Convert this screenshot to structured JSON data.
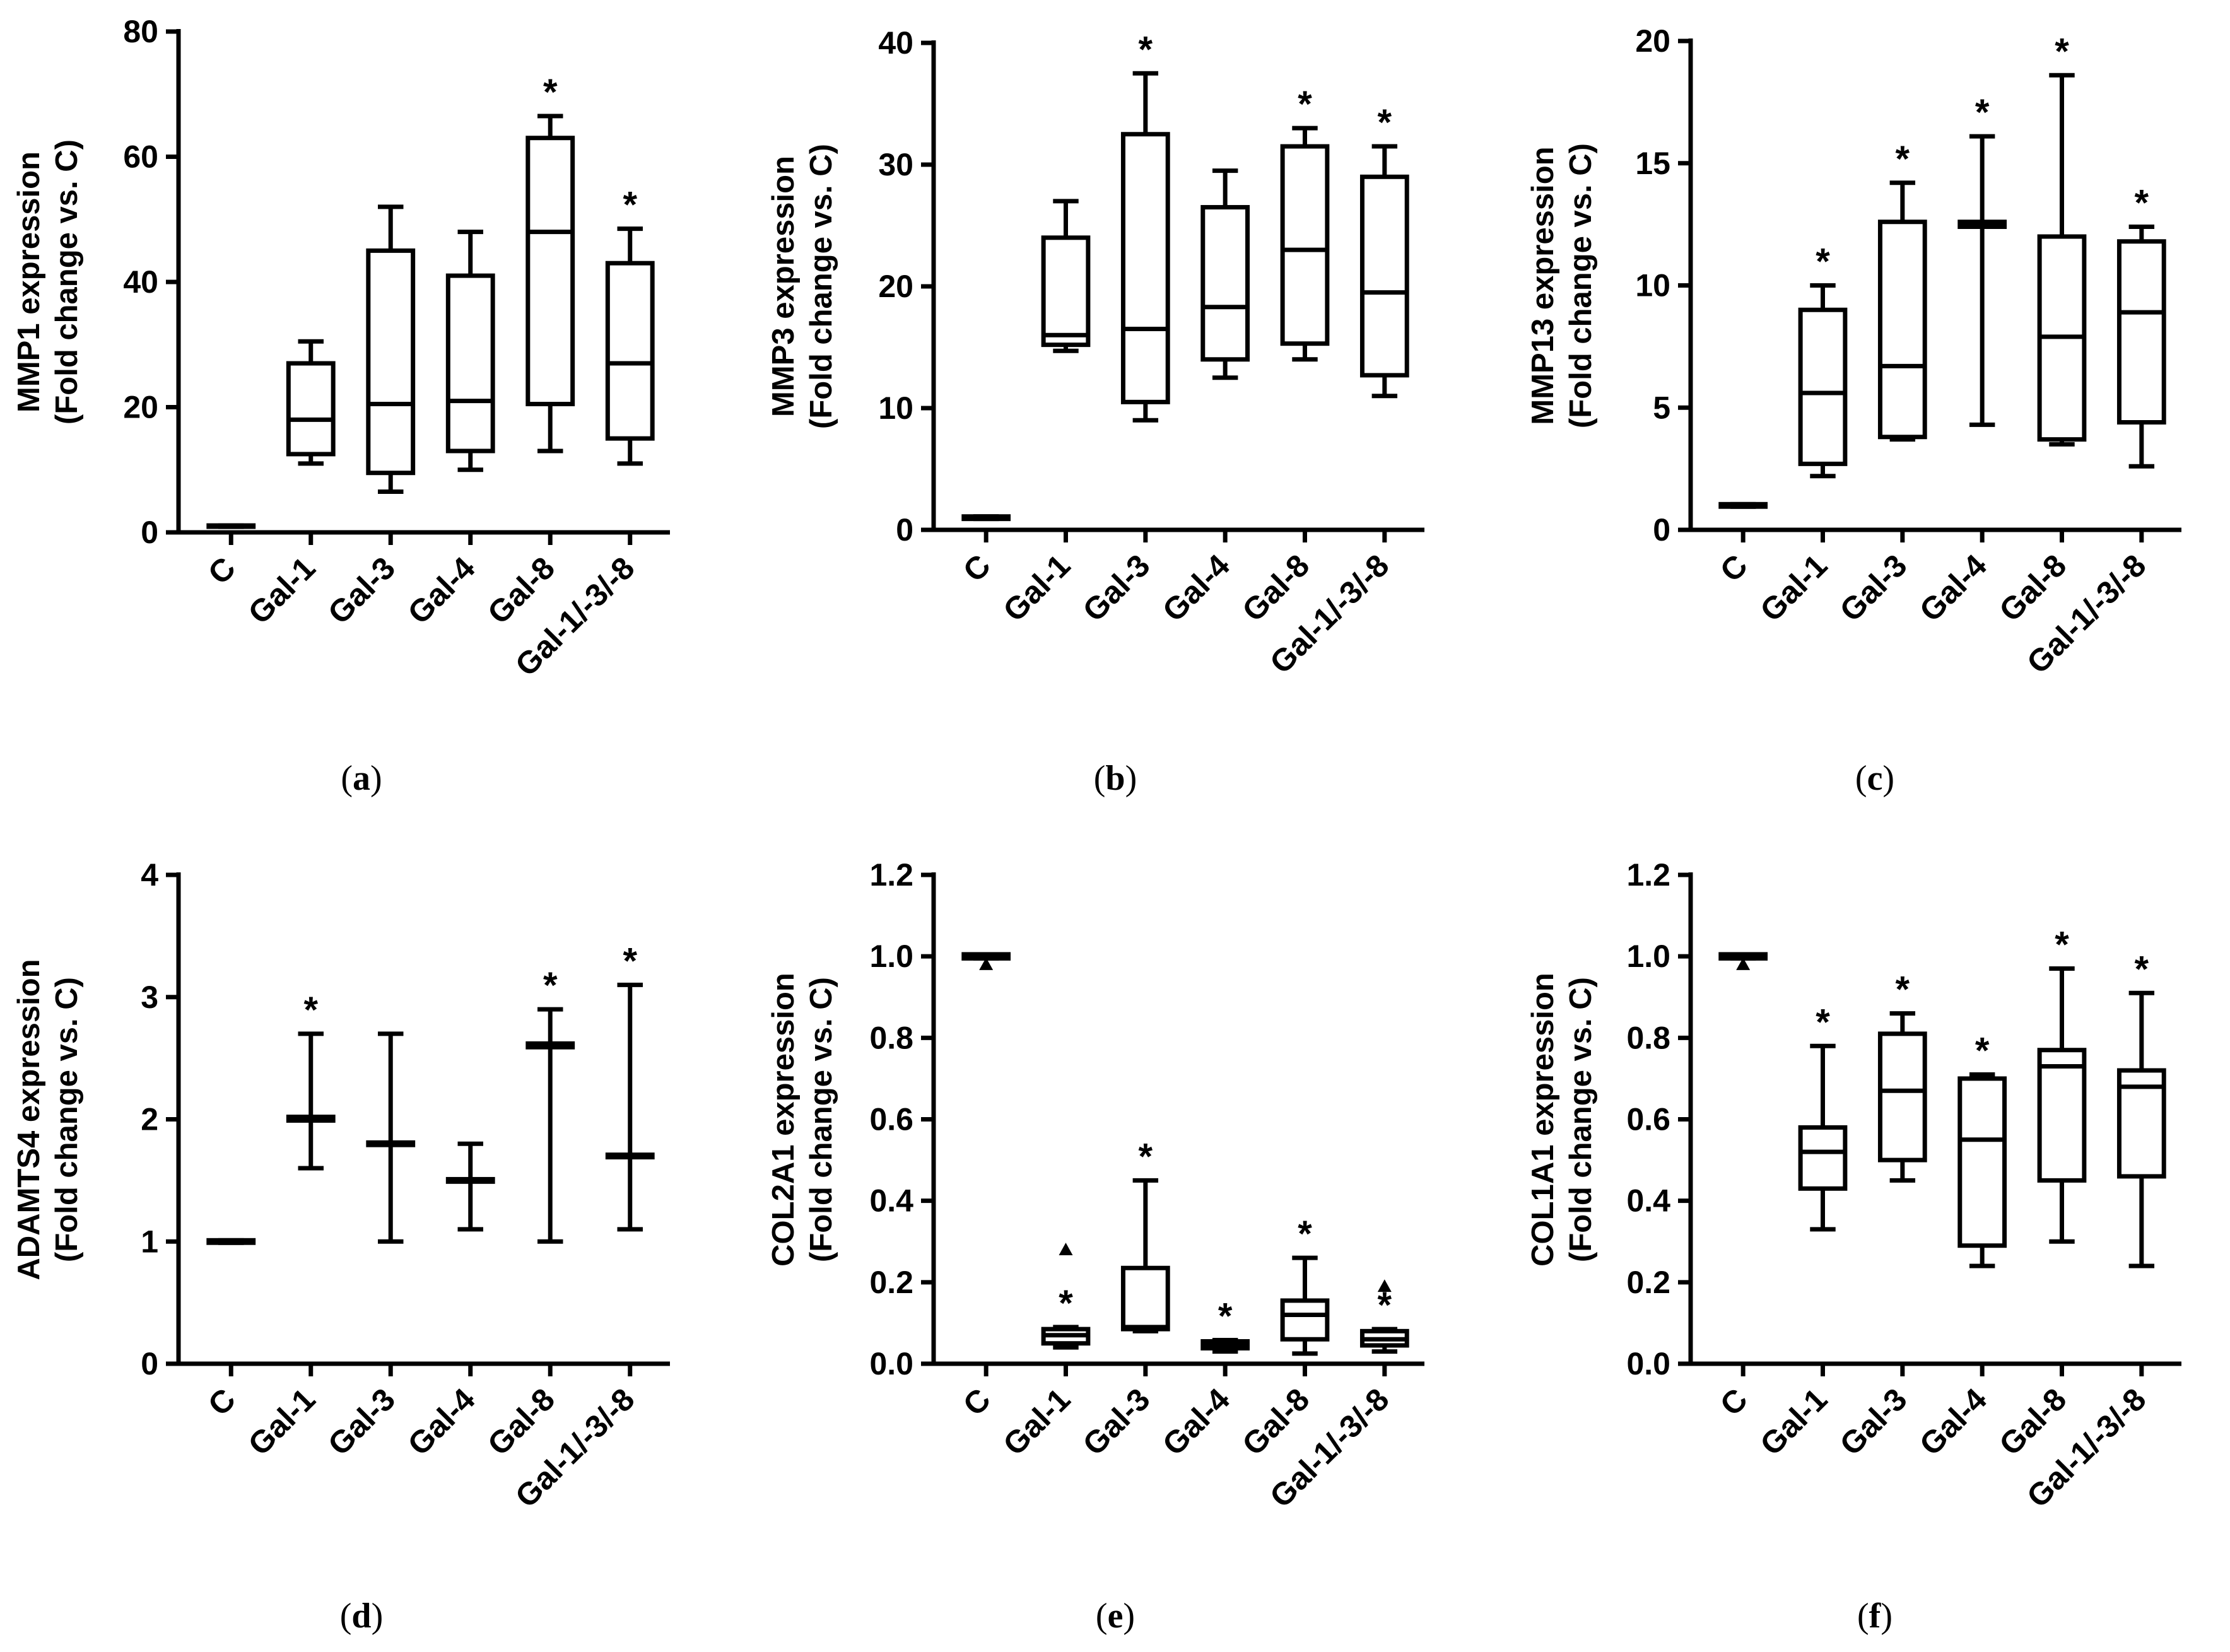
{
  "categories": [
    "C",
    "Gal-1",
    "Gal-3",
    "Gal-4",
    "Gal-8",
    "Gal-1/-3/-8"
  ],
  "significance_mark": "*",
  "chart_data": [
    {
      "type": "box",
      "panel": "a",
      "ylabel_line1": "MMP1 expression",
      "ylabel_line2": "(Fold change vs. C)",
      "ylim": [
        0,
        80
      ],
      "yticks": [
        0,
        20,
        40,
        60,
        80
      ],
      "tick_decimals": 0,
      "boxes": [
        {
          "category": "C",
          "min": 0.9,
          "q1": 0.9,
          "median": 1,
          "q3": 1.1,
          "max": 1.1,
          "sig": false
        },
        {
          "category": "Gal-1",
          "min": 11,
          "q1": 12.5,
          "median": 18,
          "q3": 27,
          "max": 30.5,
          "sig": false
        },
        {
          "category": "Gal-3",
          "min": 6.5,
          "q1": 9.5,
          "median": 20.5,
          "q3": 45,
          "max": 52,
          "sig": false
        },
        {
          "category": "Gal-4",
          "min": 10,
          "q1": 13,
          "median": 21,
          "q3": 41,
          "max": 48,
          "sig": false
        },
        {
          "category": "Gal-8",
          "min": 13,
          "q1": 20.5,
          "median": 48,
          "q3": 63,
          "max": 66.5,
          "sig": true
        },
        {
          "category": "Gal-1/-3/-8",
          "min": 11,
          "q1": 15,
          "median": 27,
          "q3": 43,
          "max": 48.5,
          "sig": true
        }
      ]
    },
    {
      "type": "box",
      "panel": "b",
      "ylabel_line1": "MMP3 expression",
      "ylabel_line2": "(Fold change vs. C)",
      "ylim": [
        0,
        40
      ],
      "yticks": [
        0,
        10,
        20,
        30,
        40
      ],
      "tick_decimals": 0,
      "boxes": [
        {
          "category": "C",
          "min": 0.9,
          "q1": 0.9,
          "median": 1,
          "q3": 1.1,
          "max": 1.1,
          "sig": false
        },
        {
          "category": "Gal-1",
          "min": 14.7,
          "q1": 15.2,
          "median": 16,
          "q3": 24,
          "max": 27,
          "sig": false
        },
        {
          "category": "Gal-3",
          "min": 9,
          "q1": 10.5,
          "median": 16.5,
          "q3": 32.5,
          "max": 37.5,
          "sig": true
        },
        {
          "category": "Gal-4",
          "min": 12.5,
          "q1": 14,
          "median": 18.3,
          "q3": 26.5,
          "max": 29.5,
          "sig": false
        },
        {
          "category": "Gal-8",
          "min": 14,
          "q1": 15.3,
          "median": 23,
          "q3": 31.5,
          "max": 33,
          "sig": true
        },
        {
          "category": "Gal-1/-3/-8",
          "min": 11,
          "q1": 12.7,
          "median": 19.5,
          "q3": 29,
          "max": 31.5,
          "sig": true
        }
      ]
    },
    {
      "type": "box",
      "panel": "c",
      "ylabel_line1": "MMP13 expression",
      "ylabel_line2": "(Fold change vs. C)",
      "ylim": [
        0,
        20
      ],
      "yticks": [
        0,
        5,
        10,
        15,
        20
      ],
      "tick_decimals": 0,
      "boxes": [
        {
          "category": "C",
          "min": 0.95,
          "q1": 0.95,
          "median": 1,
          "q3": 1.05,
          "max": 1.05,
          "sig": false
        },
        {
          "category": "Gal-1",
          "min": 2.2,
          "q1": 2.7,
          "median": 5.6,
          "q3": 9,
          "max": 10,
          "sig": true
        },
        {
          "category": "Gal-3",
          "min": 3.7,
          "q1": 3.8,
          "median": 6.7,
          "q3": 12.6,
          "max": 14.2,
          "sig": true
        },
        {
          "category": "Gal-4",
          "min": 4.3,
          "q1": 12.4,
          "median": 12.5,
          "q3": 12.6,
          "max": 16.1,
          "sig": true
        },
        {
          "category": "Gal-8",
          "min": 3.5,
          "q1": 3.7,
          "median": 7.9,
          "q3": 12,
          "max": 18.6,
          "sig": true
        },
        {
          "category": "Gal-1/-3/-8",
          "min": 2.6,
          "q1": 4.4,
          "median": 8.9,
          "q3": 11.8,
          "max": 12.4,
          "sig": true
        }
      ]
    },
    {
      "type": "box",
      "panel": "d",
      "ylabel_line1": "ADAMTS4 expression",
      "ylabel_line2": "(Fold change vs. C)",
      "ylim": [
        0,
        4
      ],
      "yticks": [
        0,
        1,
        2,
        3,
        4
      ],
      "tick_decimals": 0,
      "boxes": [
        {
          "category": "C",
          "min": 0.99,
          "q1": 0.99,
          "median": 1,
          "q3": 1.01,
          "max": 1.01,
          "sig": false
        },
        {
          "category": "Gal-1",
          "min": 1.6,
          "q1": 1.99,
          "median": 2.0,
          "q3": 2.02,
          "max": 2.7,
          "sig": true
        },
        {
          "category": "Gal-3",
          "min": 1.0,
          "q1": 1.79,
          "median": 1.8,
          "q3": 1.81,
          "max": 2.7,
          "sig": false
        },
        {
          "category": "Gal-4",
          "min": 1.1,
          "q1": 1.49,
          "median": 1.5,
          "q3": 1.51,
          "max": 1.8,
          "sig": false
        },
        {
          "category": "Gal-8",
          "min": 1.0,
          "q1": 2.59,
          "median": 2.6,
          "q3": 2.62,
          "max": 2.9,
          "sig": true
        },
        {
          "category": "Gal-1/-3/-8",
          "min": 1.1,
          "q1": 1.69,
          "median": 1.7,
          "q3": 1.71,
          "max": 3.1,
          "sig": true
        }
      ]
    },
    {
      "type": "box",
      "panel": "e",
      "ylabel_line1": "COL2A1 expression",
      "ylabel_line2": "(Fold change vs. C)",
      "ylim": [
        0,
        1.2
      ],
      "yticks": [
        0,
        0.2,
        0.4,
        0.6,
        0.8,
        1.0,
        1.2
      ],
      "tick_decimals": 1,
      "boxes": [
        {
          "category": "C",
          "min": 0.995,
          "q1": 0.995,
          "median": 1.0,
          "q3": 1.005,
          "max": 1.005,
          "sig": false,
          "outlier": 0.98
        },
        {
          "category": "Gal-1",
          "min": 0.04,
          "q1": 0.05,
          "median": 0.07,
          "q3": 0.085,
          "max": 0.09,
          "sig": true,
          "outlier": 0.28
        },
        {
          "category": "Gal-3",
          "min": 0.08,
          "q1": 0.085,
          "median": 0.09,
          "q3": 0.235,
          "max": 0.45,
          "sig": true
        },
        {
          "category": "Gal-4",
          "min": 0.03,
          "q1": 0.038,
          "median": 0.045,
          "q3": 0.055,
          "max": 0.058,
          "sig": true
        },
        {
          "category": "Gal-8",
          "min": 0.025,
          "q1": 0.06,
          "median": 0.12,
          "q3": 0.155,
          "max": 0.26,
          "sig": true
        },
        {
          "category": "Gal-1/-3/-8",
          "min": 0.03,
          "q1": 0.045,
          "median": 0.06,
          "q3": 0.08,
          "max": 0.085,
          "sig": true,
          "outlier": 0.19
        }
      ]
    },
    {
      "type": "box",
      "panel": "f",
      "ylabel_line1": "COL1A1 expression",
      "ylabel_line2": "(Fold change vs. C)",
      "ylim": [
        0,
        1.2
      ],
      "yticks": [
        0,
        0.2,
        0.4,
        0.6,
        0.8,
        1.0,
        1.2
      ],
      "tick_decimals": 1,
      "boxes": [
        {
          "category": "C",
          "min": 0.995,
          "q1": 0.995,
          "median": 1.0,
          "q3": 1.005,
          "max": 1.005,
          "sig": false,
          "outlier": 0.98
        },
        {
          "category": "Gal-1",
          "min": 0.33,
          "q1": 0.43,
          "median": 0.52,
          "q3": 0.58,
          "max": 0.78,
          "sig": true
        },
        {
          "category": "Gal-3",
          "min": 0.45,
          "q1": 0.5,
          "median": 0.67,
          "q3": 0.81,
          "max": 0.86,
          "sig": true
        },
        {
          "category": "Gal-4",
          "min": 0.24,
          "q1": 0.29,
          "median": 0.55,
          "q3": 0.7,
          "max": 0.71,
          "sig": true
        },
        {
          "category": "Gal-8",
          "min": 0.3,
          "q1": 0.45,
          "median": 0.73,
          "q3": 0.77,
          "max": 0.97,
          "sig": true
        },
        {
          "category": "Gal-1/-3/-8",
          "min": 0.24,
          "q1": 0.46,
          "median": 0.68,
          "q3": 0.72,
          "max": 0.91,
          "sig": true
        }
      ]
    }
  ]
}
